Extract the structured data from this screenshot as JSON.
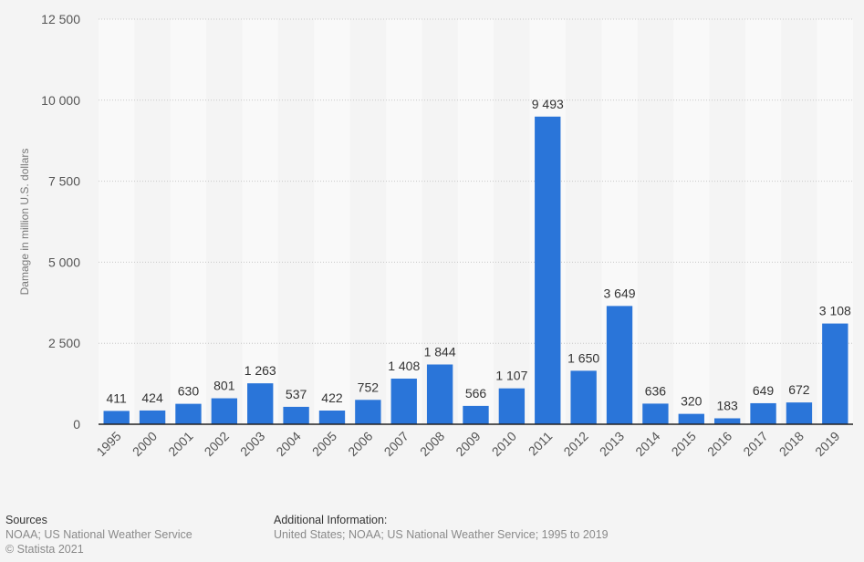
{
  "chart_data": {
    "type": "bar",
    "title": "",
    "xlabel": "",
    "ylabel": "Damage in million U.S. dollars",
    "categories": [
      "1995",
      "2000",
      "2001",
      "2002",
      "2003",
      "2004",
      "2005",
      "2006",
      "2007",
      "2008",
      "2009",
      "2010",
      "2011",
      "2012",
      "2013",
      "2014",
      "2015",
      "2016",
      "2017",
      "2018",
      "2019"
    ],
    "values": [
      411,
      424,
      630,
      801,
      1263,
      537,
      422,
      752,
      1408,
      1844,
      566,
      1107,
      9493,
      1650,
      3649,
      636,
      320,
      183,
      649,
      672,
      3108
    ],
    "value_labels": [
      "411",
      "424",
      "630",
      "801",
      "1 263",
      "537",
      "422",
      "752",
      "1 408",
      "1 844",
      "566",
      "1 107",
      "9 493",
      "1 650",
      "3 649",
      "636",
      "320",
      "183",
      "649",
      "672",
      "3 108"
    ],
    "ylim": [
      0,
      12500
    ],
    "yticks": [
      0,
      2500,
      5000,
      7500,
      10000,
      12500
    ],
    "ytick_labels": [
      "0",
      "2 500",
      "5 000",
      "7 500",
      "10 000",
      "12 500"
    ],
    "grid": true,
    "legend": "none",
    "bar_color": "#2a75d9"
  },
  "footer": {
    "sources_title": "Sources",
    "sources_text": "NOAA; US National Weather Service",
    "copyright": "© Statista 2021",
    "info_title": "Additional Information:",
    "info_text": "United States; NOAA; US National Weather Service; 1995 to 2019"
  }
}
